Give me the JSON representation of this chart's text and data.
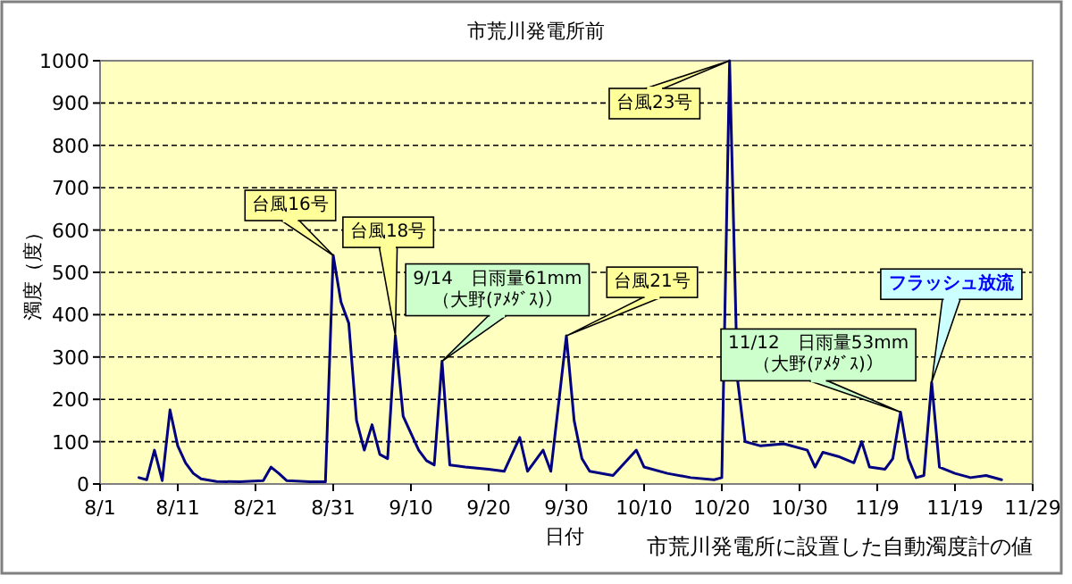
{
  "chart_data": {
    "type": "line",
    "title": "市荒川発電所前",
    "xlabel": "日付",
    "ylabel": "濁度（度）",
    "x": [
      "--08-06",
      "--08-07",
      "--08-08",
      "--08-09",
      "--08-10",
      "--08-11",
      "--08-12",
      "--08-13",
      "--08-14",
      "--08-16",
      "--08-19",
      "--08-22",
      "--08-23",
      "--08-24",
      "--08-25",
      "--08-28",
      "--08-30",
      "--08-31",
      "--09-01",
      "--09-02",
      "--09-03",
      "--09-04",
      "--09-05",
      "--09-06",
      "--09-07",
      "--09-08",
      "--09-09",
      "--09-10",
      "--09-11",
      "--09-12",
      "--09-13",
      "--09-14",
      "--09-15",
      "--09-17",
      "--09-20",
      "--09-22",
      "--09-24",
      "--09-25",
      "--09-27",
      "--09-28",
      "--09-30",
      "--10-01",
      "--10-02",
      "--10-03",
      "--10-06",
      "--10-09",
      "--10-10",
      "--10-13",
      "--10-16",
      "--10-19",
      "--10-20",
      "--10-21",
      "--10-22",
      "--10-23",
      "--10-25",
      "--10-28",
      "--10-31",
      "--11-01",
      "--11-02",
      "--11-04",
      "--11-06",
      "--11-07",
      "--11-08",
      "--11-10",
      "--11-11",
      "--11-12",
      "--11-13",
      "--11-14",
      "--11-15",
      "--11-16",
      "--11-17",
      "--11-19",
      "--11-21",
      "--11-23",
      "--11-25"
    ],
    "series": [
      {
        "color": "#000080",
        "values": [
          15,
          10,
          80,
          8,
          175,
          90,
          50,
          25,
          12,
          6,
          5,
          8,
          40,
          25,
          8,
          5,
          5,
          540,
          430,
          380,
          150,
          80,
          140,
          70,
          60,
          350,
          160,
          120,
          80,
          55,
          45,
          290,
          45,
          40,
          35,
          30,
          110,
          30,
          80,
          30,
          350,
          150,
          60,
          30,
          20,
          80,
          40,
          25,
          15,
          10,
          15,
          1000,
          250,
          100,
          90,
          95,
          80,
          40,
          75,
          65,
          50,
          100,
          40,
          35,
          60,
          170,
          60,
          15,
          20,
          240,
          40,
          25,
          15,
          20,
          10
        ]
      }
    ],
    "xlim": [
      "--08-01",
      "--11-29"
    ],
    "xticks": [
      {
        "value": "--08-01",
        "label": "8/1"
      },
      {
        "value": "--08-11",
        "label": "8/11"
      },
      {
        "value": "--08-21",
        "label": "8/21"
      },
      {
        "value": "--08-31",
        "label": "8/31"
      },
      {
        "value": "--09-10",
        "label": "9/10"
      },
      {
        "value": "--09-20",
        "label": "9/20"
      },
      {
        "value": "--09-30",
        "label": "9/30"
      },
      {
        "value": "--10-10",
        "label": "10/10"
      },
      {
        "value": "--10-20",
        "label": "10/20"
      },
      {
        "value": "--10-30",
        "label": "10/30"
      },
      {
        "value": "--11-09",
        "label": "11/9"
      },
      {
        "value": "--11-19",
        "label": "11/19"
      },
      {
        "value": "--11-29",
        "label": "11/29"
      }
    ],
    "ylim": [
      0,
      1000
    ],
    "yticks": [
      0,
      100,
      200,
      300,
      400,
      500,
      600,
      700,
      800,
      900,
      1000
    ],
    "grid": "y",
    "annotations": [
      {
        "text": "台風16号",
        "x": "--08-31",
        "y": 540
      },
      {
        "text": "台風18号",
        "x": "--09-08",
        "y": 350
      },
      {
        "text": "9/14　日雨量61mm\n（大野(ｱﾒﾀﾞｽ)）",
        "x": "--09-14",
        "y": 290
      },
      {
        "text": "台風21号",
        "x": "--09-30",
        "y": 350
      },
      {
        "text": "台風23号",
        "x": "--10-21",
        "y": 1000
      },
      {
        "text": "11/12　日雨量53mm\n（大野(ｱﾒﾀﾞｽ)）",
        "x": "--11-12",
        "y": 170
      },
      {
        "text": "フラッシュ放流",
        "x": "--11-16",
        "y": 240
      },
      "市荒川発電所に設置した自動濁度計の値"
    ]
  }
}
